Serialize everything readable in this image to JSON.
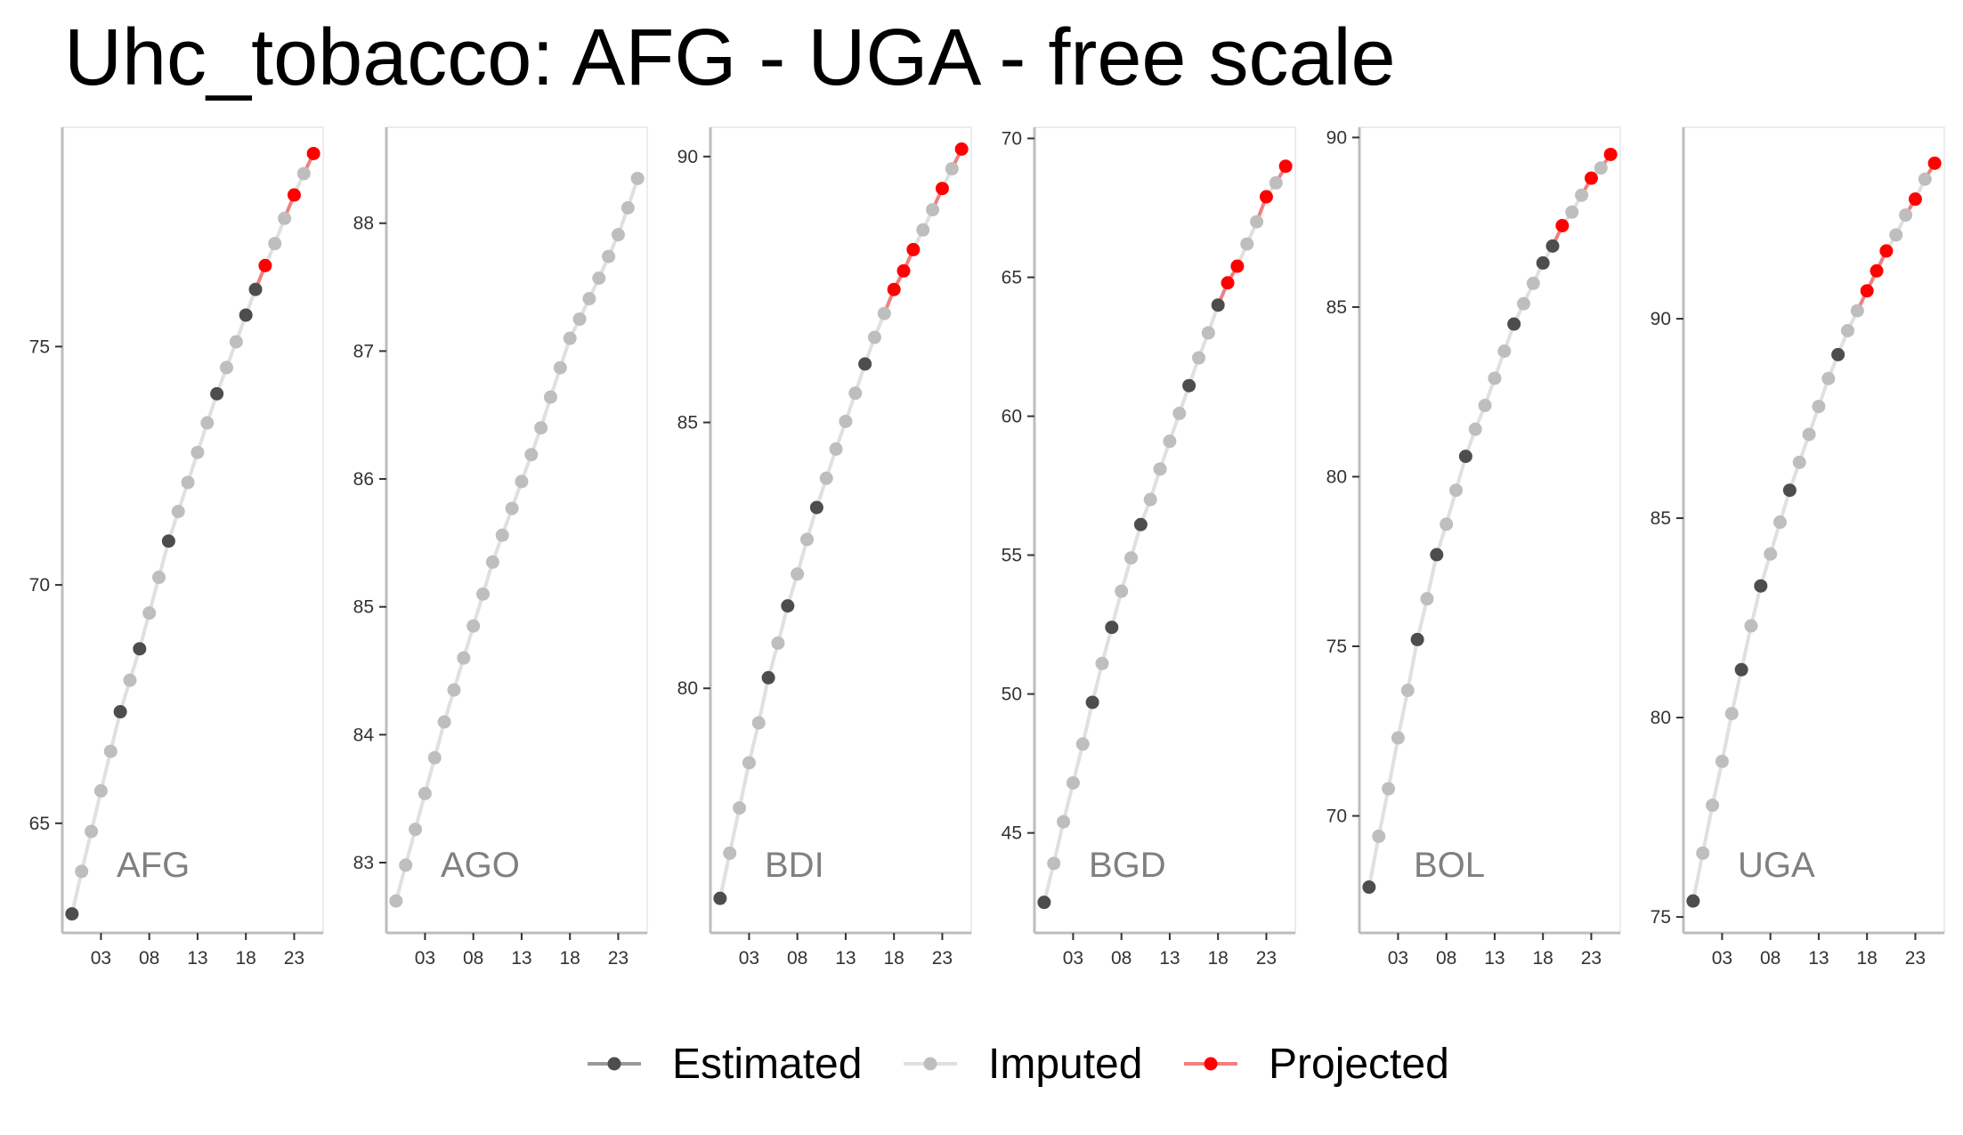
{
  "chart_data": {
    "type": "line",
    "title": "Uhc_tobacco: AFG - UGA - free scale",
    "x_tick_labels": [
      "03",
      "08",
      "13",
      "18",
      "23"
    ],
    "x_tick_values": [
      2003,
      2008,
      2013,
      2018,
      2023
    ],
    "xlim": [
      1999,
      2026
    ],
    "legend": {
      "position": "bottom",
      "items": [
        {
          "key": "estimated",
          "label": "Estimated",
          "color": "#4d4d4d",
          "line_color": "#999999"
        },
        {
          "key": "imputed",
          "label": "Imputed",
          "color": "#bebebe",
          "line_color": "#e0e0e0"
        },
        {
          "key": "projected",
          "label": "Projected",
          "color": "#ff0000",
          "line_color": "#f08080"
        }
      ]
    },
    "panels": [
      {
        "label": "AFG",
        "ylim": [
          62.7,
          79.6
        ],
        "y_ticks": [
          65,
          70,
          75
        ],
        "x": [
          2000,
          2001,
          2002,
          2003,
          2004,
          2005,
          2006,
          2007,
          2008,
          2009,
          2010,
          2011,
          2012,
          2013,
          2014,
          2015,
          2016,
          2017,
          2018,
          2019,
          2020,
          2021,
          2022,
          2023,
          2024,
          2025
        ],
        "y": [
          63.1,
          63.99,
          64.83,
          65.68,
          66.51,
          67.34,
          68.0,
          68.66,
          69.41,
          70.16,
          70.92,
          71.54,
          72.15,
          72.78,
          73.4,
          74.01,
          74.56,
          75.1,
          75.66,
          76.2,
          76.7,
          77.16,
          77.69,
          78.18,
          78.63,
          79.05
        ],
        "status": [
          "e",
          "i",
          "i",
          "i",
          "i",
          "e",
          "i",
          "e",
          "i",
          "i",
          "e",
          "i",
          "i",
          "i",
          "i",
          "e",
          "i",
          "i",
          "e",
          "e",
          "p",
          "i",
          "i",
          "p",
          "i",
          "p"
        ]
      },
      {
        "label": "AGO",
        "ylim": [
          82.45,
          88.75
        ],
        "y_ticks": [
          83,
          84,
          85,
          86,
          87,
          88
        ],
        "x": [
          2000,
          2001,
          2002,
          2003,
          2004,
          2005,
          2006,
          2007,
          2008,
          2009,
          2010,
          2011,
          2012,
          2013,
          2014,
          2015,
          2016,
          2017,
          2018,
          2019,
          2020,
          2021,
          2022,
          2023,
          2024,
          2025
        ],
        "y": [
          82.7,
          82.98,
          83.26,
          83.54,
          83.82,
          84.1,
          84.35,
          84.6,
          84.85,
          85.1,
          85.35,
          85.56,
          85.77,
          85.98,
          86.19,
          86.4,
          86.64,
          86.87,
          87.1,
          87.25,
          87.41,
          87.57,
          87.74,
          87.91,
          88.12,
          88.35
        ],
        "status": [
          "i",
          "i",
          "i",
          "i",
          "i",
          "i",
          "i",
          "i",
          "i",
          "i",
          "i",
          "i",
          "i",
          "i",
          "i",
          "i",
          "i",
          "i",
          "i",
          "i",
          "i",
          "i",
          "i",
          "i",
          "i",
          "i"
        ]
      },
      {
        "label": "BDI",
        "ylim": [
          75.4,
          90.55
        ],
        "y_ticks": [
          80,
          85,
          90
        ],
        "x": [
          2000,
          2001,
          2002,
          2003,
          2004,
          2005,
          2006,
          2007,
          2008,
          2009,
          2010,
          2011,
          2012,
          2013,
          2014,
          2015,
          2016,
          2017,
          2018,
          2019,
          2020,
          2021,
          2022,
          2023,
          2024,
          2025
        ],
        "y": [
          76.05,
          76.9,
          77.75,
          78.6,
          79.35,
          80.2,
          80.85,
          81.55,
          82.15,
          82.8,
          83.4,
          83.95,
          84.5,
          85.02,
          85.55,
          86.1,
          86.6,
          87.05,
          87.5,
          87.85,
          88.25,
          88.62,
          89.0,
          89.4,
          89.77,
          90.14
        ],
        "status": [
          "e",
          "i",
          "i",
          "i",
          "i",
          "e",
          "i",
          "e",
          "i",
          "i",
          "e",
          "i",
          "i",
          "i",
          "i",
          "e",
          "i",
          "i",
          "p",
          "p",
          "p",
          "i",
          "i",
          "p",
          "i",
          "p"
        ]
      },
      {
        "label": "BGD",
        "ylim": [
          41.4,
          70.4
        ],
        "y_ticks": [
          45,
          50,
          55,
          60,
          65,
          70
        ],
        "x": [
          2000,
          2001,
          2002,
          2003,
          2004,
          2005,
          2006,
          2007,
          2008,
          2009,
          2010,
          2011,
          2012,
          2013,
          2014,
          2015,
          2016,
          2017,
          2018,
          2019,
          2020,
          2021,
          2022,
          2023,
          2024,
          2025
        ],
        "y": [
          42.5,
          43.9,
          45.4,
          46.8,
          48.2,
          49.7,
          51.1,
          52.4,
          53.7,
          54.9,
          56.1,
          57.0,
          58.1,
          59.1,
          60.1,
          61.1,
          62.1,
          63.0,
          64.0,
          64.8,
          65.4,
          66.2,
          67.0,
          67.9,
          68.4,
          69.0
        ],
        "status": [
          "e",
          "i",
          "i",
          "i",
          "i",
          "e",
          "i",
          "e",
          "i",
          "i",
          "e",
          "i",
          "i",
          "i",
          "i",
          "e",
          "i",
          "i",
          "e",
          "p",
          "p",
          "i",
          "i",
          "p",
          "i",
          "p"
        ]
      },
      {
        "label": "BOL",
        "ylim": [
          66.55,
          90.3
        ],
        "y_ticks": [
          70,
          75,
          80,
          85,
          90
        ],
        "x": [
          2000,
          2001,
          2002,
          2003,
          2004,
          2005,
          2006,
          2007,
          2008,
          2009,
          2010,
          2011,
          2012,
          2013,
          2014,
          2015,
          2016,
          2017,
          2018,
          2019,
          2020,
          2021,
          2022,
          2023,
          2024,
          2025
        ],
        "y": [
          67.9,
          69.4,
          70.8,
          72.3,
          73.7,
          75.2,
          76.4,
          77.7,
          78.6,
          79.6,
          80.6,
          81.4,
          82.1,
          82.9,
          83.7,
          84.5,
          85.1,
          85.7,
          86.3,
          86.8,
          87.4,
          87.8,
          88.3,
          88.8,
          89.1,
          89.5
        ],
        "status": [
          "e",
          "i",
          "i",
          "i",
          "i",
          "e",
          "i",
          "e",
          "i",
          "i",
          "e",
          "i",
          "i",
          "i",
          "i",
          "e",
          "i",
          "i",
          "e",
          "e",
          "p",
          "i",
          "i",
          "p",
          "i",
          "p"
        ]
      },
      {
        "label": "UGA",
        "ylim": [
          74.6,
          94.8
        ],
        "y_ticks": [
          75,
          80,
          85,
          90
        ],
        "x": [
          2000,
          2001,
          2002,
          2003,
          2004,
          2005,
          2006,
          2007,
          2008,
          2009,
          2010,
          2011,
          2012,
          2013,
          2014,
          2015,
          2016,
          2017,
          2018,
          2019,
          2020,
          2021,
          2022,
          2023,
          2024,
          2025
        ],
        "y": [
          75.4,
          76.6,
          77.8,
          78.9,
          80.1,
          81.2,
          82.3,
          83.3,
          84.1,
          84.9,
          85.7,
          86.4,
          87.1,
          87.8,
          88.5,
          89.1,
          89.7,
          90.2,
          90.7,
          91.2,
          91.7,
          92.1,
          92.6,
          93.0,
          93.5,
          93.9
        ],
        "status": [
          "e",
          "i",
          "i",
          "i",
          "i",
          "e",
          "i",
          "e",
          "i",
          "i",
          "e",
          "i",
          "i",
          "i",
          "i",
          "e",
          "i",
          "i",
          "p",
          "p",
          "p",
          "i",
          "i",
          "p",
          "i",
          "p"
        ]
      }
    ]
  }
}
